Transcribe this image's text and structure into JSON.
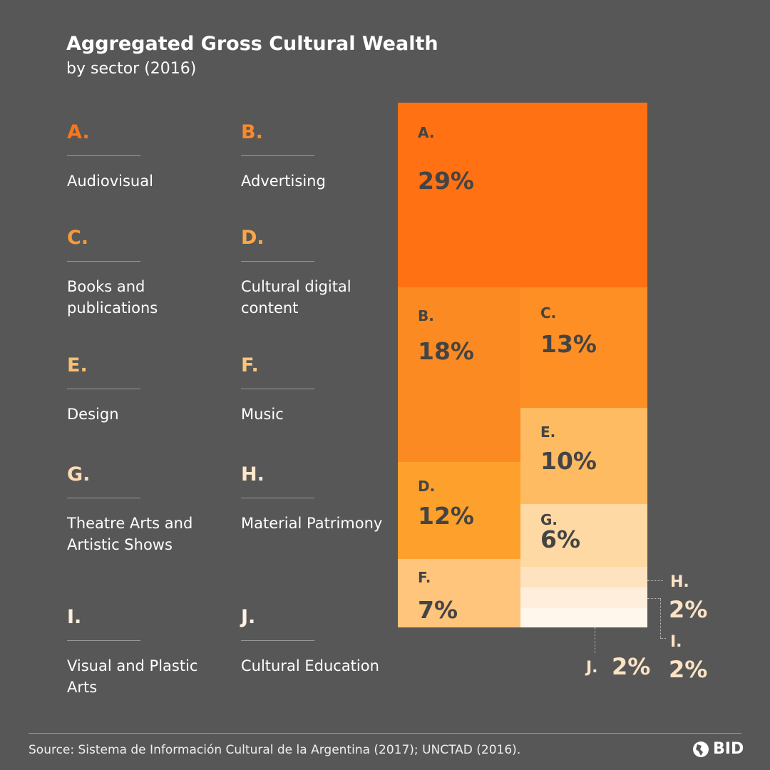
{
  "title": "Aggregated Gross Cultural Wealth",
  "subtitle": "by sector (2016)",
  "legend": [
    {
      "letter": "A.",
      "name": "Audiovisual",
      "color": "#f9761a"
    },
    {
      "letter": "B.",
      "name": "Advertising",
      "color": "#f98a2a"
    },
    {
      "letter": "C.",
      "name": "Books and publications",
      "color": "#f99a3a"
    },
    {
      "letter": "D.",
      "name": "Cultural digital content",
      "color": "#fba848"
    },
    {
      "letter": "E.",
      "name": "Design",
      "color": "#fcbf72"
    },
    {
      "letter": "F.",
      "name": "Music",
      "color": "#fcc67e"
    },
    {
      "letter": "G.",
      "name": "Theatre Arts and Artistic Shows",
      "color": "#fddcb4"
    },
    {
      "letter": "H.",
      "name": "Material Patrimony",
      "color": "#fde6cc"
    },
    {
      "letter": "I.",
      "name": "Visual and Plastic Arts",
      "color": "#feeedd"
    },
    {
      "letter": "J.",
      "name": "Cultural Education",
      "color": "#fff3e6"
    }
  ],
  "chart_data": {
    "type": "treemap",
    "title": "Aggregated Gross Cultural Wealth",
    "subtitle": "by sector (2016)",
    "categories": [
      "A.",
      "B.",
      "C.",
      "D.",
      "E.",
      "F.",
      "G.",
      "H.",
      "I.",
      "J."
    ],
    "values": [
      29,
      18,
      13,
      12,
      10,
      7,
      6,
      2,
      2,
      2
    ],
    "labels": [
      "29%",
      "18%",
      "13%",
      "12%",
      "10%",
      "7%",
      "6%",
      "2%",
      "2%",
      "2%"
    ],
    "colors": [
      "#ff7112",
      "#fc8a22",
      "#fd8f25",
      "#fda12c",
      "#febb62",
      "#ffc57c",
      "#ffd9a3",
      "#ffe3c0",
      "#ffeedb",
      "#fff6ec"
    ]
  },
  "source": "Source: Sistema de Información Cultural de la Argentina (2017); UNCTAD (2016).",
  "logo": "BID"
}
